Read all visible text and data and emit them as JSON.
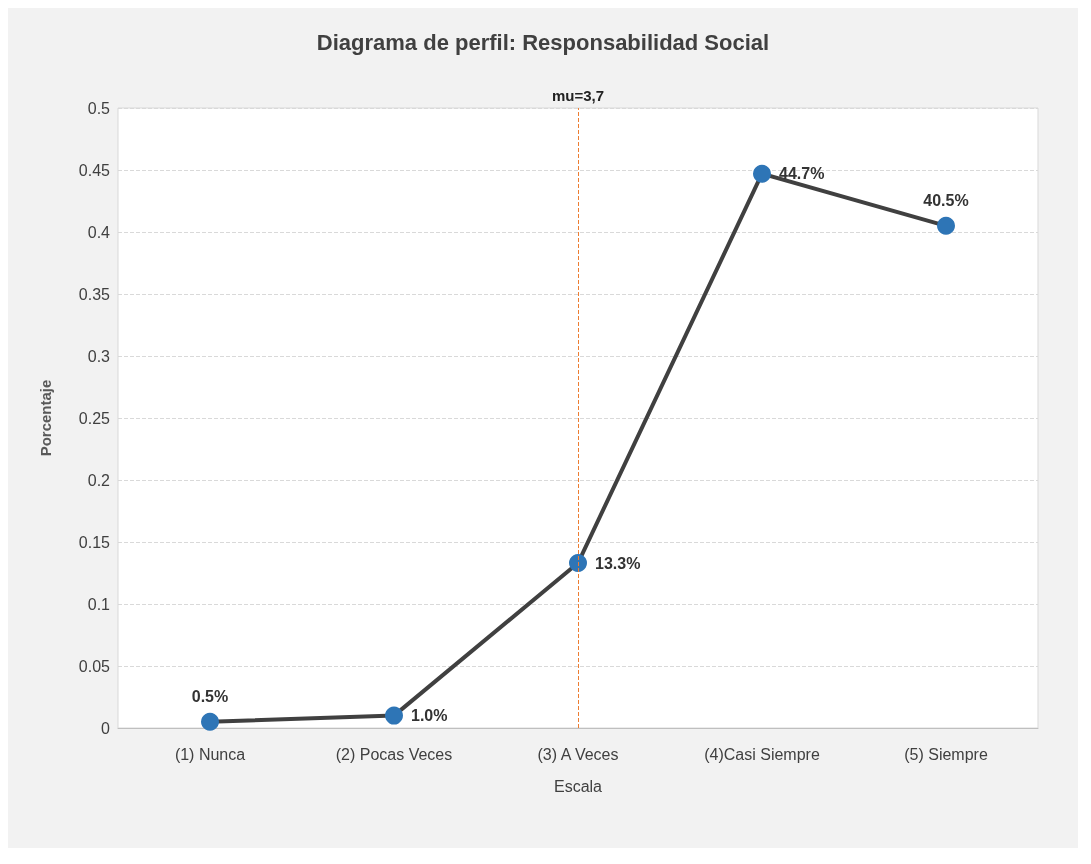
{
  "chart_data": {
    "type": "line",
    "title": "Diagrama de perfil: Responsabilidad Social",
    "xlabel": "Escala",
    "ylabel": "Porcentaje",
    "categories": [
      "(1) Nunca",
      "(2) Pocas Veces",
      "(3) A Veces",
      "(4)Casi Siempre",
      "(5) Siempre"
    ],
    "values": [
      0.005,
      0.01,
      0.133,
      0.447,
      0.405
    ],
    "value_labels": [
      "0.5%",
      "1.0%",
      "13.3%",
      "44.7%",
      "40.5%"
    ],
    "color": "#404040",
    "colors": [
      "#2e75b6",
      "#2e75b6",
      "#2e75b6",
      "#2e75b6",
      "#2e75b6"
    ],
    "marker": "circle",
    "line_style": "solid",
    "ylim": [
      0,
      0.5
    ],
    "yticks": [
      0,
      0.05,
      0.1,
      0.15,
      0.2,
      0.25,
      0.3,
      0.35,
      0.4,
      0.45,
      0.5
    ],
    "grid": "y",
    "ref_lines": [
      {
        "axis": "x",
        "value": "(3) A Veces",
        "label": "mu=3,7",
        "color": "#ed7d31",
        "line_style": "dashed"
      }
    ]
  }
}
